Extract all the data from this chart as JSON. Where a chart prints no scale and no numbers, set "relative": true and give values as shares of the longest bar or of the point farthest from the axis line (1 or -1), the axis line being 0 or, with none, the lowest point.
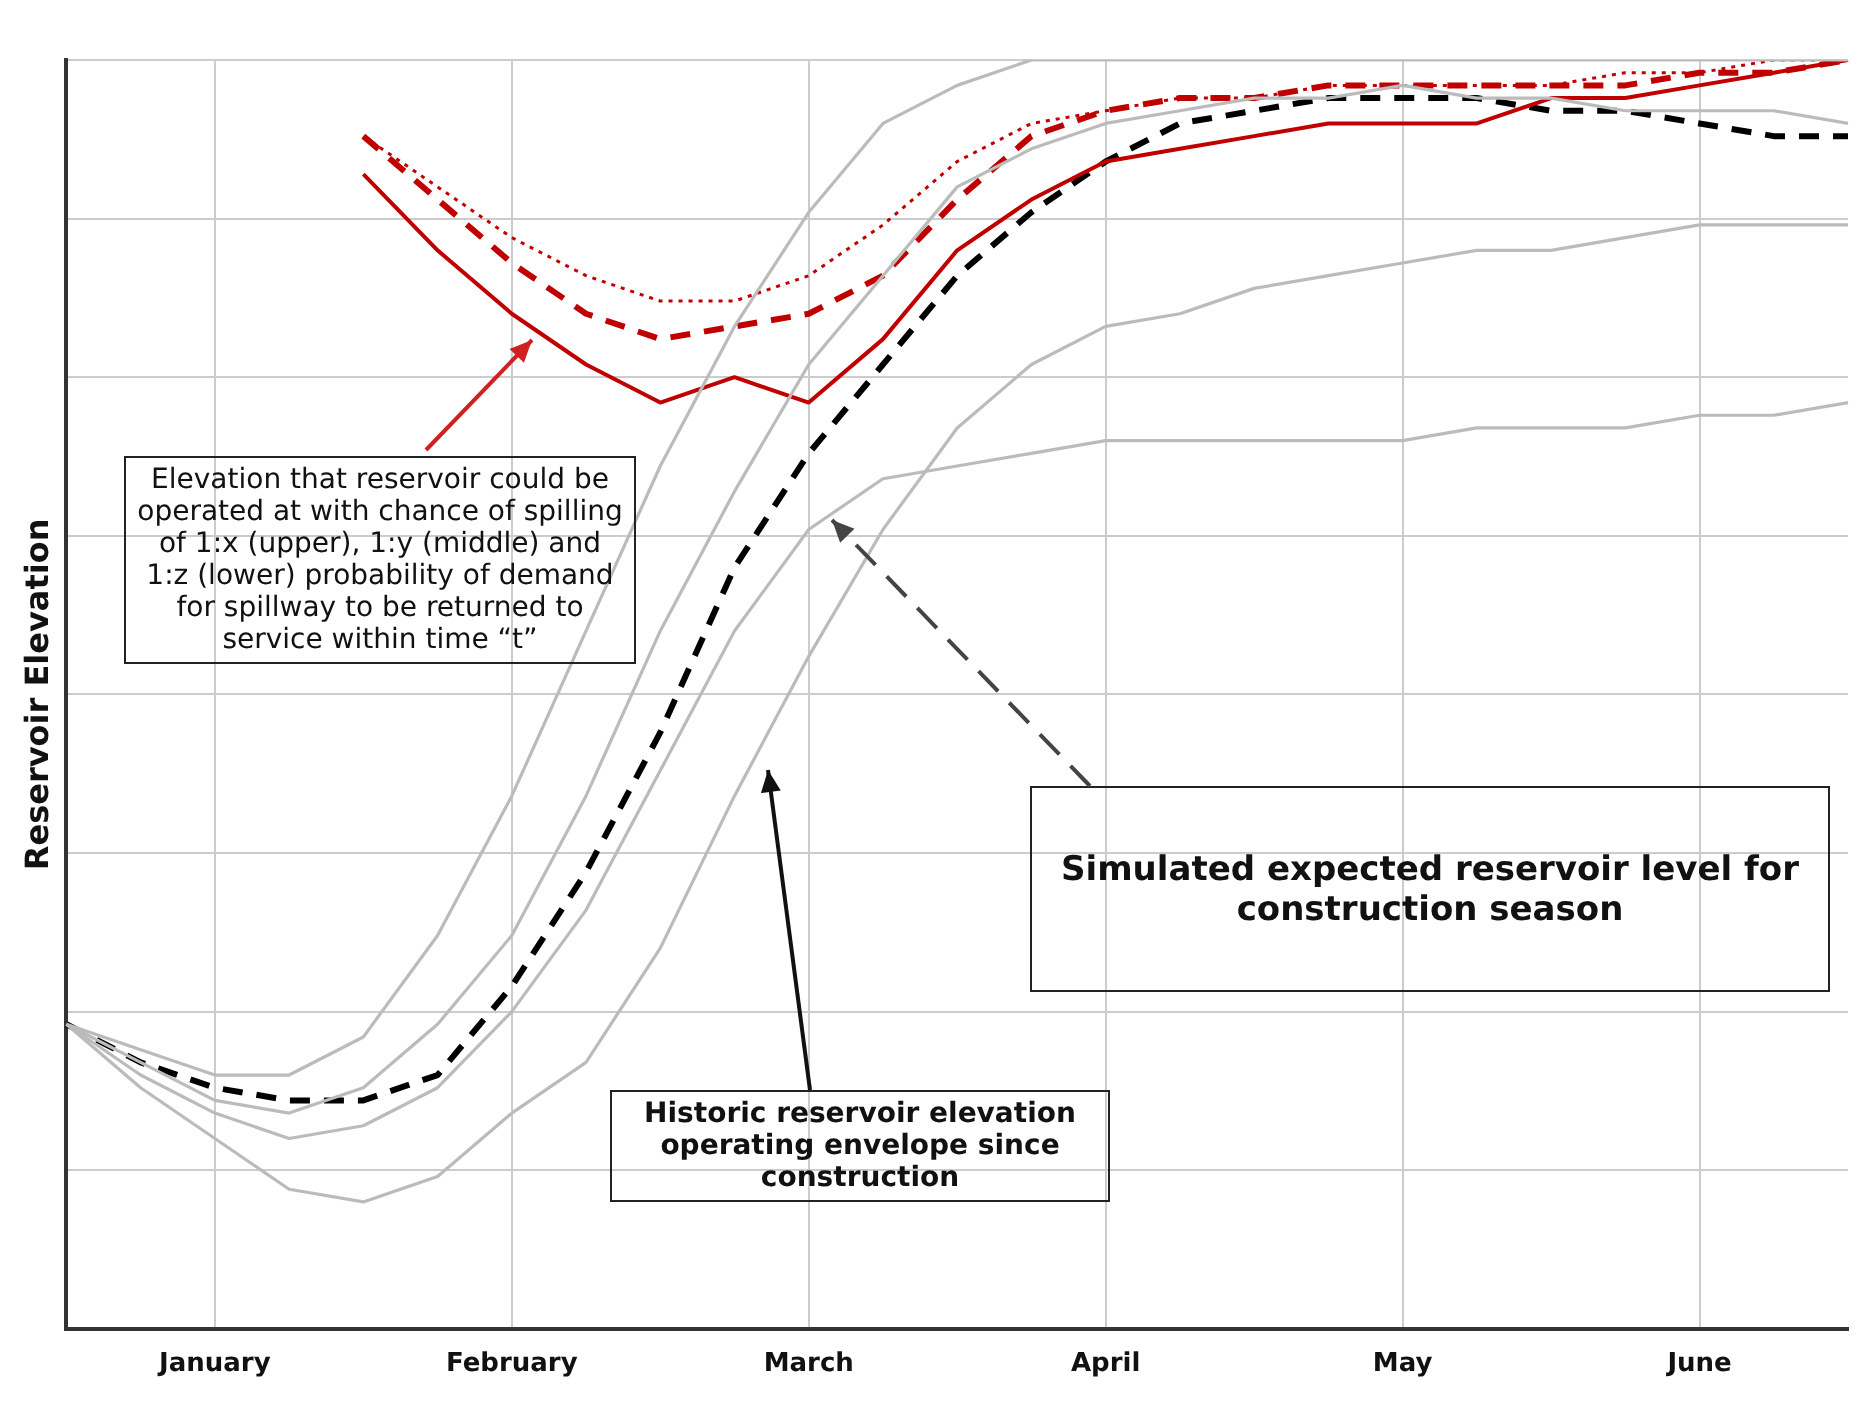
{
  "chart_data": {
    "type": "line",
    "relative": true,
    "ylabel": "Reservoir Elevation",
    "grid": true,
    "marker": "none",
    "categories": [
      null,
      null,
      "January",
      null,
      null,
      null,
      "February",
      null,
      null,
      null,
      "March",
      null,
      null,
      null,
      "April",
      null,
      null,
      null,
      "May",
      null,
      null,
      null,
      "June",
      null,
      null
    ],
    "series": [
      {
        "color": "#bbbbbb",
        "line_style": "solid",
        "values": [
          0.24,
          0.22,
          0.2,
          0.2,
          0.23,
          0.31,
          0.42,
          0.55,
          0.68,
          0.79,
          0.88,
          0.95,
          0.98,
          1,
          1,
          1,
          1,
          1,
          1,
          1,
          1,
          1,
          1,
          1,
          1
        ]
      },
      {
        "color": "#bbbbbb",
        "line_style": "solid",
        "values": [
          0.24,
          0.19,
          0.15,
          0.11,
          0.1,
          0.12,
          0.17,
          0.21,
          0.3,
          0.42,
          0.53,
          0.63,
          0.71,
          0.76,
          0.79,
          0.8,
          0.82,
          0.83,
          0.84,
          0.85,
          0.85,
          0.86,
          0.87,
          0.87,
          0.87
        ]
      },
      {
        "color": "#bbbbbb",
        "line_style": "solid",
        "values": [
          0.24,
          0.2,
          0.17,
          0.15,
          0.16,
          0.19,
          0.25,
          0.33,
          0.44,
          0.55,
          0.63,
          0.67,
          0.68,
          0.69,
          0.7,
          0.7,
          0.7,
          0.7,
          0.7,
          0.71,
          0.71,
          0.71,
          0.72,
          0.72,
          0.73
        ]
      },
      {
        "color": "#bbbbbb",
        "line_style": "solid",
        "values": [
          0.24,
          0.21,
          0.18,
          0.17,
          0.19,
          0.24,
          0.31,
          0.42,
          0.55,
          0.66,
          0.76,
          0.83,
          0.9,
          0.93,
          0.95,
          0.96,
          0.97,
          0.97,
          0.98,
          0.97,
          0.97,
          0.96,
          0.96,
          0.96,
          0.95
        ]
      },
      {
        "color": "#c00000",
        "line_style": "dotted",
        "values": [
          null,
          null,
          null,
          null,
          0.94,
          0.9,
          0.86,
          0.83,
          0.81,
          0.81,
          0.83,
          0.87,
          0.92,
          0.95,
          0.96,
          0.97,
          0.97,
          0.98,
          0.98,
          0.98,
          0.98,
          0.99,
          0.99,
          1,
          1
        ]
      },
      {
        "color": "#c00000",
        "line_style": "dashed",
        "values": [
          null,
          null,
          null,
          null,
          0.94,
          0.89,
          0.84,
          0.8,
          0.78,
          0.79,
          0.8,
          0.83,
          0.89,
          0.94,
          0.96,
          0.97,
          0.97,
          0.98,
          0.98,
          0.98,
          0.98,
          0.98,
          0.99,
          0.99,
          1
        ]
      },
      {
        "color": "#c00000",
        "line_style": "solid",
        "values": [
          null,
          null,
          null,
          null,
          0.91,
          0.85,
          0.8,
          0.76,
          0.73,
          0.75,
          0.73,
          0.78,
          0.85,
          0.89,
          0.92,
          0.93,
          0.94,
          0.95,
          0.95,
          0.95,
          0.97,
          0.97,
          0.98,
          0.99,
          1
        ]
      },
      {
        "color": "#000000",
        "line_style": "dashed",
        "values": [
          0.24,
          0.21,
          0.19,
          0.18,
          0.18,
          0.2,
          0.27,
          0.36,
          0.47,
          0.6,
          0.69,
          0.76,
          0.83,
          0.88,
          0.92,
          0.95,
          0.96,
          0.97,
          0.97,
          0.97,
          0.96,
          0.96,
          0.95,
          0.94,
          0.94
        ]
      }
    ],
    "annotations": [
      "Elevation that reservoir could be operated at with  chance of spilling of 1:x (upper), 1:y (middle) and 1:z (lower) probability of demand for spillway to be returned to service within time “t”",
      "Simulated expected reservoir level for construction season",
      "Historic reservoir elevation operating envelope since construction"
    ]
  }
}
